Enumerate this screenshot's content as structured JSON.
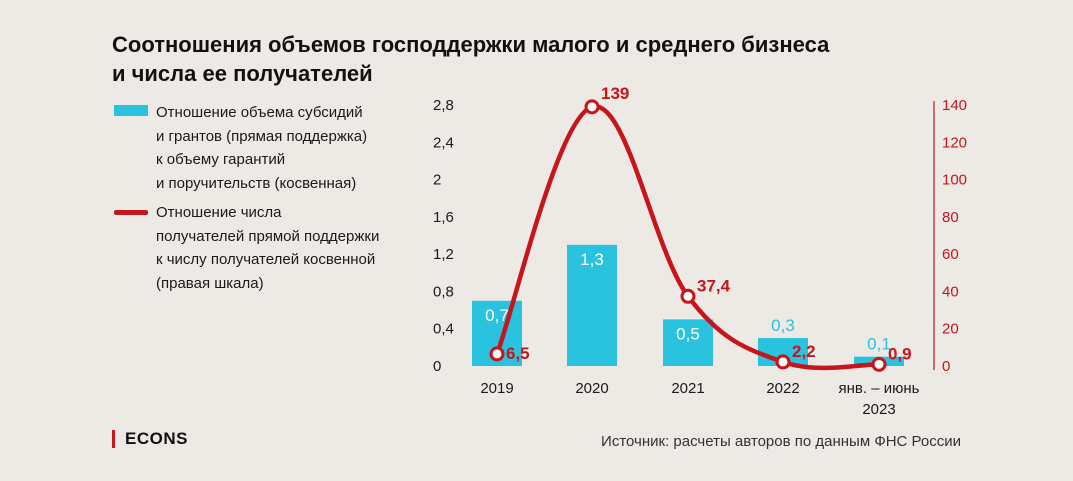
{
  "title": "Соотношения объемов господдержки малого и среднего бизнеса\nи числа ее получателей",
  "legend": {
    "bar": "Отношение объема субсидий\nи грантов (прямая поддержка)\nк объему гарантий\nи поручительств (косвенная)",
    "line": "Отношение числа\nполучателей прямой поддержки\nк числу получателей косвенной\n(правая шкала)"
  },
  "source": "Источник: расчеты авторов по данным ФНС России",
  "brand": "ECONS",
  "colors": {
    "bar": "#29c3e0",
    "line": "#c8141b",
    "bar_label_inside": "#ffffff",
    "bar_label_outside": "#29c3e0"
  },
  "chart_data": {
    "type": "bar+line",
    "categories": [
      "2019",
      "2020",
      "2021",
      "2022",
      "янв. – июнь\n2023"
    ],
    "series": [
      {
        "name": "Отношение объема субсидий и грантов (прямая поддержка) к объему гарантий и поручительств (косвенная)",
        "type": "bar",
        "axis": "left",
        "values": [
          0.7,
          1.3,
          0.5,
          0.3,
          0.1
        ],
        "labels": [
          "0,7",
          "1,3",
          "0,5",
          "0,3",
          "0,1"
        ]
      },
      {
        "name": "Отношение числа получателей прямой поддержки к числу получателей косвенной (правая шкала)",
        "type": "line",
        "axis": "right",
        "values": [
          6.5,
          139,
          37.4,
          2.2,
          0.9
        ],
        "labels": [
          "6,5",
          "139",
          "37,4",
          "2,2",
          "0,9"
        ]
      }
    ],
    "y_left": {
      "min": 0,
      "max": 2.8,
      "ticks": [
        "0",
        "0,4",
        "0,8",
        "1,2",
        "1,6",
        "2",
        "2,4",
        "2,8"
      ],
      "tick_values": [
        0,
        0.4,
        0.8,
        1.2,
        1.6,
        2.0,
        2.4,
        2.8
      ]
    },
    "y_right": {
      "min": 0,
      "max": 140,
      "ticks": [
        "0",
        "20",
        "40",
        "60",
        "80",
        "100",
        "120",
        "140"
      ],
      "tick_values": [
        0,
        20,
        40,
        60,
        80,
        100,
        120,
        140
      ]
    }
  }
}
